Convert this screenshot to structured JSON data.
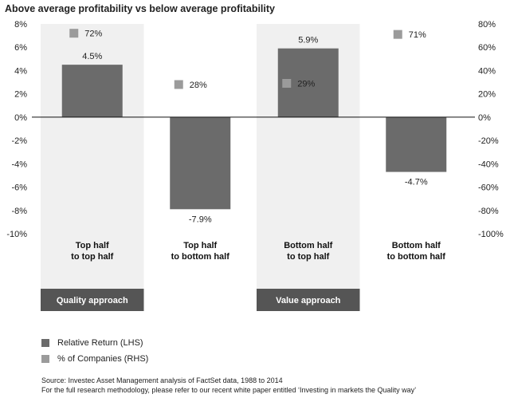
{
  "chart_data": {
    "type": "bar",
    "title": "Above average profitability vs below average profitability",
    "categories": [
      "Top half\nto top half",
      "Top half\nto bottom half",
      "Bottom half\nto top half",
      "Bottom half\nto bottom half"
    ],
    "series": [
      {
        "name": "Relative Return (LHS)",
        "axis": "left",
        "kind": "bar",
        "values": [
          4.5,
          -7.9,
          5.9,
          -4.7
        ],
        "labels": [
          "4.5%",
          "-7.9%",
          "5.9%",
          "-4.7%"
        ],
        "color": "#6b6b6b"
      },
      {
        "name": "% of Companies (RHS)",
        "axis": "right",
        "kind": "marker",
        "values": [
          72,
          28,
          29,
          71
        ],
        "labels": [
          "72%",
          "28%",
          "29%",
          "71%"
        ],
        "color": "#9b9b9b"
      }
    ],
    "y_left": {
      "lim": [
        -10,
        8
      ],
      "ticks": [
        8,
        6,
        4,
        2,
        0,
        -2,
        -4,
        -6,
        -8,
        -10
      ],
      "tick_labels": [
        "8%",
        "6%",
        "4%",
        "2%",
        "0%",
        "-2%",
        "-4%",
        "-6%",
        "-8%",
        "-10%"
      ]
    },
    "y_right": {
      "lim": [
        -100,
        80
      ],
      "ticks": [
        80,
        60,
        40,
        20,
        0,
        -20,
        -40,
        -60,
        -80,
        -100
      ],
      "tick_labels": [
        "80%",
        "60%",
        "40%",
        "20%",
        "0%",
        "-20%",
        "-40%",
        "-60%",
        "-80%",
        "-100%"
      ]
    },
    "groups": [
      {
        "label": "Quality approach",
        "categories": [
          0
        ]
      },
      {
        "label": "Value approach",
        "categories": [
          2
        ]
      }
    ],
    "colors": {
      "bar": "#6b6b6b",
      "marker": "#9b9b9b",
      "band": "#f0f0f0",
      "band_label_bg": "#555555"
    }
  },
  "legend": {
    "items": [
      {
        "label": "Relative Return (LHS)",
        "color": "#6b6b6b"
      },
      {
        "label": "% of Companies (RHS)",
        "color": "#9b9b9b"
      }
    ]
  },
  "source": {
    "line1": "Source: Investec Asset Management analysis of FactSet data, 1988 to 2014",
    "line2": "For the full research methodology, please refer to our recent white paper entitled ‘Investing in markets the Quality way’"
  }
}
